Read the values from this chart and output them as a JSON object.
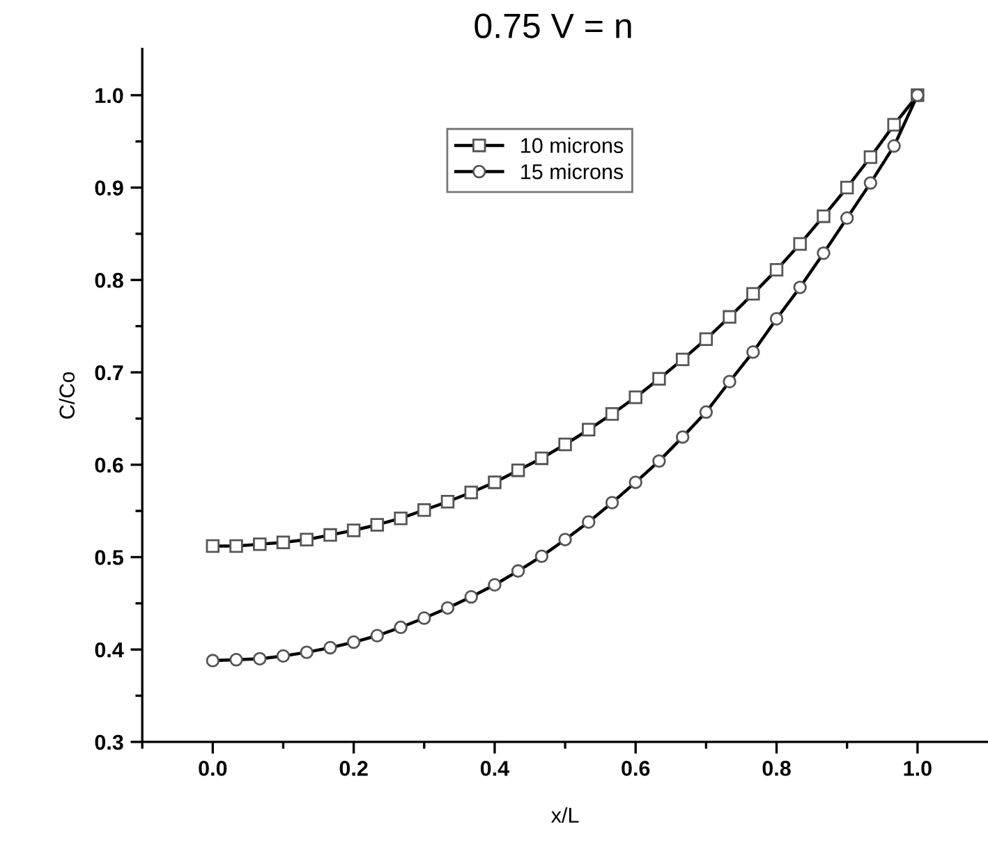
{
  "chart_data": {
    "type": "line",
    "title": "0.75 V = n",
    "xlabel": "x/L",
    "ylabel": "C/Co",
    "x": [
      0,
      0.0333,
      0.0667,
      0.1,
      0.1333,
      0.1667,
      0.2,
      0.2333,
      0.2667,
      0.3,
      0.3333,
      0.3667,
      0.4,
      0.4333,
      0.4667,
      0.5,
      0.5333,
      0.5667,
      0.6,
      0.6333,
      0.6667,
      0.7,
      0.7333,
      0.7667,
      0.8,
      0.8333,
      0.8667,
      0.9,
      0.9333,
      0.9667,
      1.0
    ],
    "series": [
      {
        "name": "10 microns",
        "color": "#000000",
        "marker": "square",
        "values": [
          0.512,
          0.512,
          0.514,
          0.516,
          0.519,
          0.524,
          0.529,
          0.535,
          0.542,
          0.551,
          0.56,
          0.57,
          0.581,
          0.594,
          0.607,
          0.622,
          0.638,
          0.655,
          0.673,
          0.693,
          0.714,
          0.736,
          0.76,
          0.785,
          0.811,
          0.839,
          0.869,
          0.9,
          0.933,
          0.968,
          1.0
        ]
      },
      {
        "name": "15 microns",
        "color": "#000000",
        "marker": "circle",
        "values": [
          0.388,
          0.389,
          0.39,
          0.393,
          0.397,
          0.402,
          0.408,
          0.415,
          0.424,
          0.434,
          0.445,
          0.457,
          0.47,
          0.485,
          0.501,
          0.519,
          0.538,
          0.559,
          0.581,
          0.604,
          0.63,
          0.657,
          0.69,
          0.722,
          0.758,
          0.792,
          0.829,
          0.867,
          0.905,
          0.945,
          1.0
        ]
      }
    ],
    "xlim": [
      -0.1,
      1.1
    ],
    "ylim": [
      0.3,
      1.05
    ],
    "xticks": [
      {
        "value": -0.1,
        "label": null
      },
      {
        "value": 0,
        "label": "0.0"
      },
      {
        "value": 0.1,
        "label": null
      },
      0.2,
      {
        "value": 0.3,
        "label": null
      },
      0.4,
      {
        "value": 0.5,
        "label": null
      },
      0.6,
      {
        "value": 0.7,
        "label": null
      },
      0.8,
      {
        "value": 0.9,
        "label": null
      },
      {
        "value": 1,
        "label": "1.0"
      }
    ],
    "yticks": [
      0.3,
      {
        "value": 0.35,
        "label": null
      },
      0.4,
      {
        "value": 0.45,
        "label": null
      },
      0.5,
      {
        "value": 0.55,
        "label": null
      },
      0.6,
      {
        "value": 0.65,
        "label": null
      },
      0.7,
      {
        "value": 0.75,
        "label": null
      },
      0.8,
      {
        "value": 0.85,
        "label": null
      },
      0.9,
      {
        "value": 0.95,
        "label": null
      },
      {
        "value": 1,
        "label": "1.0"
      }
    ],
    "legend": "top",
    "grid": false,
    "line_style": "solid"
  }
}
